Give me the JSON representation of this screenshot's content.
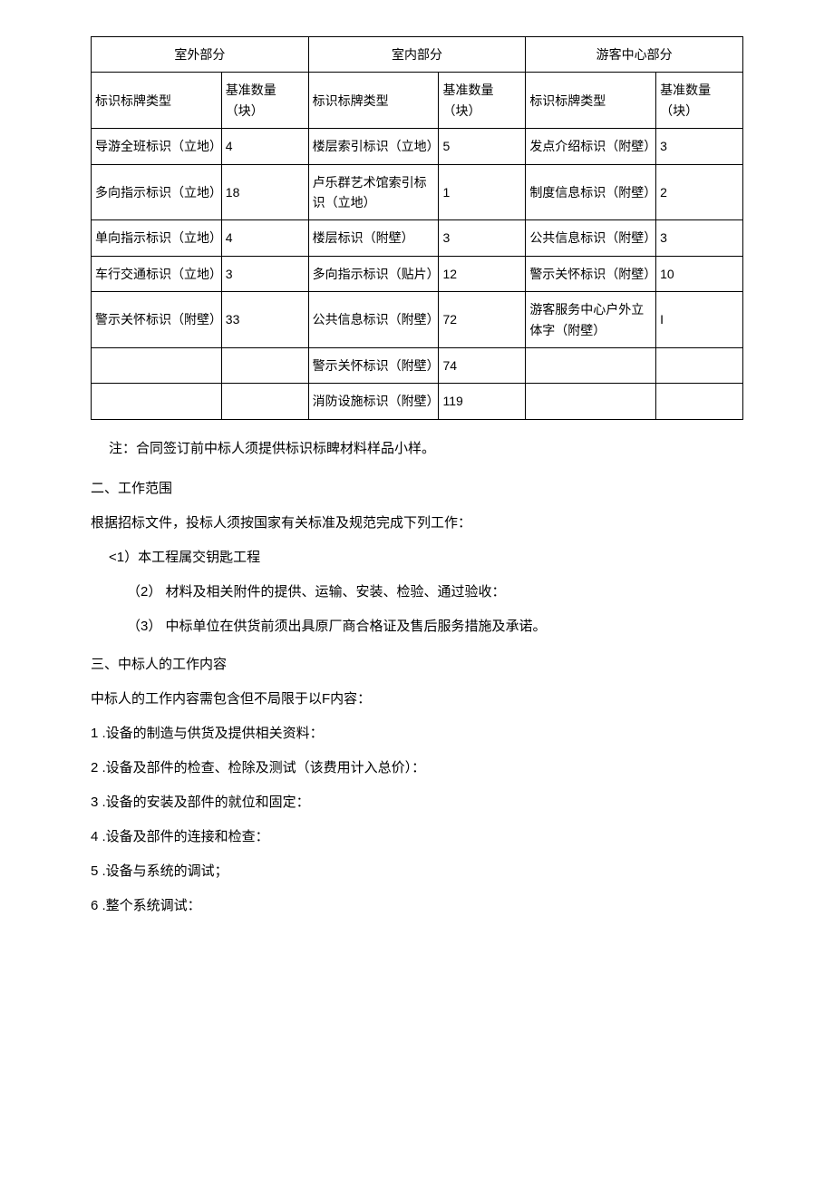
{
  "table": {
    "headers": {
      "group1": "室外部分",
      "group2": "室内部分",
      "group3": "游客中心部分",
      "typeLabel": "标识标牌类型",
      "qtyLabel": "基准数量（块）"
    },
    "rows": [
      {
        "c1": "导游全班标识（立地）",
        "q1": "4",
        "c2": "楼层索引标识（立地）",
        "q2": "5",
        "c3": "发点介绍标识（附壁）",
        "q3": "3"
      },
      {
        "c1": "多向指示标识（立地）",
        "q1": "18",
        "c2": "卢乐群艺术馆索引标识（立地）",
        "q2": "1",
        "c3": "制度信息标识（附壁）",
        "q3": "2"
      },
      {
        "c1": "单向指示标识（立地）",
        "q1": "4",
        "c2": "楼层标识（附壁）",
        "q2": "3",
        "c3": "公共信息标识（附壁）",
        "q3": "3"
      },
      {
        "c1": "车行交通标识（立地）",
        "q1": "3",
        "c2": "多向指示标识（贴片）",
        "q2": "12",
        "c3": "警示关怀标识（附壁）",
        "q3": "10"
      },
      {
        "c1": "警示关怀标识（附壁）",
        "q1": "33",
        "c2": "公共信息标识（附壁）",
        "q2": "72",
        "c3": "游客服务中心户外立体字（附壁）",
        "q3": "I"
      },
      {
        "c1": "",
        "q1": "",
        "c2": "警示关怀标识（附壁）",
        "q2": "74",
        "c3": "",
        "q3": ""
      },
      {
        "c1": "",
        "q1": "",
        "c2": "消防设施标识（附壁）",
        "q2": "119",
        "c3": "",
        "q3": ""
      }
    ]
  },
  "body": {
    "note": "注：合同签订前中标人须提供标识标睥材料样品小样。",
    "sec2_title": "二、工作范围",
    "sec2_intro": "根据招标文件，投标人须按国家有关标准及规范完成下列工作：",
    "sec2_i1": "<1）本工程属交钥匙工程",
    "sec2_i2": "（2） 材料及相关附件的提供、运输、安装、检验、通过验收：",
    "sec2_i3": "（3） 中标单位在供货前须出具原厂商合格证及售后服务措施及承诺。",
    "sec3_title": " 三、中标人的工作内容",
    "sec3_intro": "中标人的工作内容需包含但不局限于以F内容：",
    "sec3_i1": "1   .设备的制造与供货及提供相关资料：",
    "sec3_i2": "2   .设备及部件的检查、检除及测试（该费用计入总价）：",
    "sec3_i3": "3   .设备的安装及部件的就位和固定：",
    "sec3_i4": "4   .设备及部件的连接和检查：",
    "sec3_i5": "5   .设备与系统的调试；",
    "sec3_i6": "6   .整个系统调试："
  }
}
